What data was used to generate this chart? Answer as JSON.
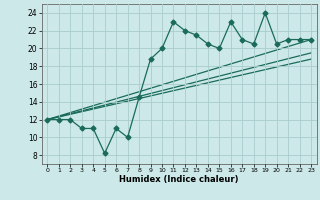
{
  "xlabel": "Humidex (Indice chaleur)",
  "ylabel": "",
  "background_color": "#cce8e8",
  "grid_color": "#aacccc",
  "line_color": "#1a6b5a",
  "xlim": [
    -0.5,
    23.5
  ],
  "ylim": [
    7.0,
    25.0
  ],
  "yticks": [
    8,
    10,
    12,
    14,
    16,
    18,
    20,
    22,
    24
  ],
  "xticks": [
    0,
    1,
    2,
    3,
    4,
    5,
    6,
    7,
    8,
    9,
    10,
    11,
    12,
    13,
    14,
    15,
    16,
    17,
    18,
    19,
    20,
    21,
    22,
    23
  ],
  "series1_x": [
    0,
    1,
    2,
    3,
    4,
    5,
    6,
    7,
    8,
    9,
    10,
    11,
    12,
    13,
    14,
    15,
    16,
    17,
    18,
    19,
    20,
    21,
    22,
    23
  ],
  "series1_y": [
    12,
    12,
    12,
    11,
    11,
    8.2,
    11,
    10,
    14.5,
    18.8,
    20,
    23,
    22,
    21.5,
    20.5,
    20,
    23,
    21,
    20.5,
    24,
    20.5,
    21,
    21,
    21
  ],
  "series2_x": [
    0,
    23
  ],
  "series2_y": [
    12.0,
    21.0
  ],
  "series3_x": [
    0,
    23
  ],
  "series3_y": [
    12.0,
    19.5
  ],
  "series4_x": [
    0,
    23
  ],
  "series4_y": [
    12.0,
    18.8
  ],
  "marker": "D",
  "markersize": 2.5,
  "linewidth": 0.9
}
